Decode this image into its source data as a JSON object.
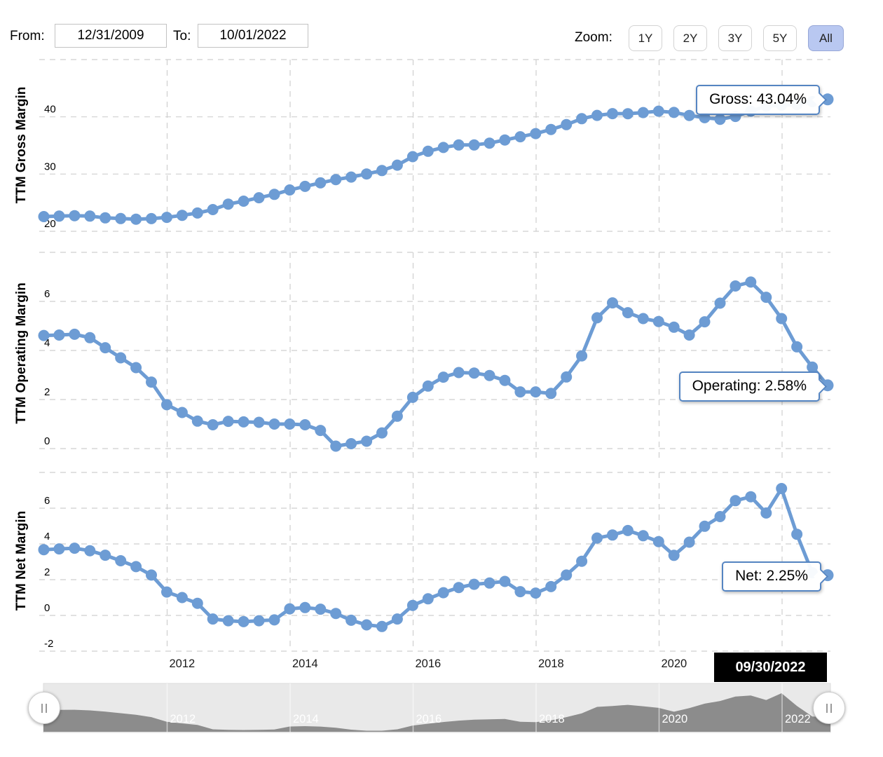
{
  "toolbar": {
    "from_label": "From:",
    "from_value": "12/31/2009",
    "to_label": "To:",
    "to_value": "10/01/2022",
    "zoom_label": "Zoom:",
    "zoom_buttons": [
      "1Y",
      "2Y",
      "3Y",
      "5Y",
      "All"
    ],
    "active_zoom": "All"
  },
  "colors": {
    "series_blue": "#6d9cd4",
    "tooltip_border": "#5585c2",
    "gridline": "#cfcfcf",
    "navigator_area": "#8c8c8c",
    "navigator_bg": "#e9e9e9",
    "active_button_bg": "#b9c8f1",
    "crosshair_label_bg": "#000000",
    "crosshair_label_text": "#ffffff"
  },
  "chart_data": {
    "type": "line",
    "subtype": "three stacked quarterly TTM margin panels with circular markers, shared x axis",
    "x_dates": [
      "12/31/2009",
      "3/31/2010",
      "6/30/2010",
      "9/30/2010",
      "12/31/2010",
      "3/31/2011",
      "6/30/2011",
      "9/30/2011",
      "12/31/2011",
      "3/31/2012",
      "6/30/2012",
      "9/30/2012",
      "12/31/2012",
      "3/31/2013",
      "6/30/2013",
      "9/30/2013",
      "12/31/2013",
      "3/31/2014",
      "6/30/2014",
      "9/30/2014",
      "12/31/2014",
      "3/31/2015",
      "6/30/2015",
      "9/30/2015",
      "12/31/2015",
      "3/31/2016",
      "6/30/2016",
      "9/30/2016",
      "12/31/2016",
      "3/31/2017",
      "6/30/2017",
      "9/30/2017",
      "12/31/2017",
      "3/31/2018",
      "6/30/2018",
      "9/30/2018",
      "12/31/2018",
      "3/31/2019",
      "6/30/2019",
      "9/30/2019",
      "12/31/2019",
      "3/31/2020",
      "6/30/2020",
      "9/30/2020",
      "12/31/2020",
      "3/31/2021",
      "6/30/2021",
      "9/30/2021",
      "12/31/2021",
      "3/31/2022",
      "6/30/2022",
      "9/30/2022"
    ],
    "x_axis_labels": [
      "2012",
      "2014",
      "2016",
      "2018",
      "2020"
    ],
    "x_gridline_years": [
      2012,
      2014,
      2016,
      2018,
      2020,
      2022
    ],
    "last_date_label": "09/30/2022",
    "grid": "dashed",
    "legend": "none",
    "panels": [
      {
        "title": "TTM Gross Margin",
        "tooltip": "Gross: 43.04%",
        "last_value": 43.04,
        "ylim": [
          20,
          50
        ],
        "yticks": [
          20,
          30,
          40
        ],
        "values": [
          22.57,
          22.66,
          22.73,
          22.66,
          22.35,
          22.23,
          22.12,
          22.22,
          22.44,
          22.79,
          23.2,
          23.79,
          24.75,
          25.26,
          25.86,
          26.45,
          27.23,
          27.85,
          28.46,
          29.04,
          29.48,
          30.02,
          30.62,
          31.56,
          33.04,
          33.98,
          34.65,
          35.09,
          35.09,
          35.4,
          35.96,
          36.52,
          37.07,
          37.79,
          38.64,
          39.68,
          40.25,
          40.56,
          40.55,
          40.74,
          40.99,
          40.77,
          40.24,
          39.85,
          39.57,
          40.07,
          40.99,
          41.87,
          42.03,
          42.14,
          42.65,
          43.04
        ]
      },
      {
        "title": "TTM Operating Margin",
        "tooltip": "Operating: 2.58%",
        "last_value": 2.58,
        "ylim": [
          0,
          8
        ],
        "yticks": [
          0,
          2,
          4,
          6
        ],
        "values": [
          4.61,
          4.63,
          4.66,
          4.52,
          4.11,
          3.7,
          3.3,
          2.71,
          1.79,
          1.47,
          1.12,
          0.97,
          1.11,
          1.09,
          1.07,
          1.0,
          1.0,
          0.97,
          0.74,
          0.1,
          0.2,
          0.3,
          0.64,
          1.32,
          2.09,
          2.55,
          2.91,
          3.1,
          3.08,
          2.98,
          2.78,
          2.31,
          2.31,
          2.25,
          2.92,
          3.78,
          5.33,
          5.94,
          5.54,
          5.3,
          5.18,
          4.95,
          4.63,
          5.17,
          5.93,
          6.63,
          6.79,
          6.17,
          5.3,
          4.15,
          3.32,
          2.58
        ]
      },
      {
        "title": "TTM Net Margin",
        "tooltip": "Net: 2.25%",
        "last_value": 2.25,
        "ylim": [
          -2,
          8
        ],
        "yticks": [
          -2,
          0,
          2,
          4,
          6
        ],
        "values": [
          3.68,
          3.72,
          3.76,
          3.62,
          3.37,
          3.06,
          2.73,
          2.26,
          1.31,
          1.0,
          0.68,
          -0.2,
          -0.3,
          -0.35,
          -0.3,
          -0.25,
          0.37,
          0.44,
          0.35,
          0.11,
          -0.27,
          -0.53,
          -0.62,
          -0.2,
          0.56,
          0.93,
          1.27,
          1.56,
          1.74,
          1.81,
          1.9,
          1.33,
          1.25,
          1.61,
          2.26,
          3.03,
          4.33,
          4.5,
          4.75,
          4.46,
          4.13,
          3.36,
          4.1,
          4.99,
          5.53,
          6.42,
          6.64,
          5.73,
          7.1,
          4.54,
          2.39,
          2.25
        ]
      }
    ],
    "navigator": {
      "labels": [
        "2012",
        "2014",
        "2016",
        "2018",
        "2020",
        "2022"
      ],
      "series_source": "TTM Net Margin"
    }
  }
}
